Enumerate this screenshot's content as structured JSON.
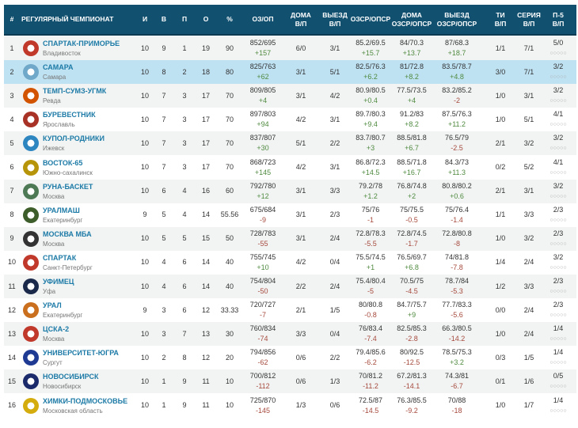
{
  "header": [
    "#",
    "РЕГУЛЯРНЫЙ ЧЕМПИОНАТ",
    "И",
    "В",
    "П",
    "О",
    "%",
    "ОЗ/ОП",
    "ДОМА\nВ/П",
    "ВЫЕЗД\nВ/П",
    "ОЗСР/ОПСР",
    "ДОМА\nОЗСР/ОПСР",
    "ВЫЕЗД\nОЗСР/ОПСР",
    "ТИ\nВ/П",
    "СЕРИЯ\nВ/П",
    "П-5\nВ/П"
  ],
  "colors": {
    "header_bg": "#11506f",
    "team_name": "#1c7aa6",
    "highlight": "#bfe2f3",
    "positive": "#4f8a3f",
    "negative": "#a64a3d"
  },
  "last_five_marker": "○○○○○",
  "rows": [
    [
      "1",
      "СПАРТАК-ПРИМОРЬЕ",
      "Владивосток",
      "10",
      "9",
      "1",
      "19",
      "90",
      "852/695",
      "+157",
      "6/0",
      "3/1",
      "85.2/69.5",
      "+15.7",
      "84/70.3",
      "+13.7",
      "87/68.3",
      "+18.7",
      "1/1",
      "7/1",
      "5/0",
      "#c0392b"
    ],
    [
      "2",
      "САМАРА",
      "Самара",
      "10",
      "8",
      "2",
      "18",
      "80",
      "825/763",
      "+62",
      "3/1",
      "5/1",
      "82.5/76.3",
      "+6.2",
      "81/72.8",
      "+8.2",
      "83.5/78.7",
      "+4.8",
      "3/0",
      "7/1",
      "3/2",
      "#6fa8c8"
    ],
    [
      "3",
      "ТЕМП-СУМЗ-УГМК",
      "Ревда",
      "10",
      "7",
      "3",
      "17",
      "70",
      "809/805",
      "+4",
      "3/1",
      "4/2",
      "80.9/80.5",
      "+0.4",
      "77.5/73.5",
      "+4",
      "83.2/85.2",
      "-2",
      "1/0",
      "3/1",
      "3/2",
      "#d35400"
    ],
    [
      "4",
      "БУРЕВЕСТНИК",
      "Ярославль",
      "10",
      "7",
      "3",
      "17",
      "70",
      "897/803",
      "+94",
      "4/2",
      "3/1",
      "89.7/80.3",
      "+9.4",
      "91.2/83",
      "+8.2",
      "87.5/76.3",
      "+11.2",
      "1/0",
      "5/1",
      "4/1",
      "#a93226"
    ],
    [
      "5",
      "КУПОЛ-РОДНИКИ",
      "Ижевск",
      "10",
      "7",
      "3",
      "17",
      "70",
      "837/807",
      "+30",
      "5/1",
      "2/2",
      "83.7/80.7",
      "+3",
      "88.5/81.8",
      "+6.7",
      "76.5/79",
      "-2.5",
      "2/1",
      "3/2",
      "3/2",
      "#2e86c1"
    ],
    [
      "6",
      "ВОСТОК-65",
      "Южно-сахалинск",
      "10",
      "7",
      "3",
      "17",
      "70",
      "868/723",
      "+145",
      "4/2",
      "3/1",
      "86.8/72.3",
      "+14.5",
      "88.5/71.8",
      "+16.7",
      "84.3/73",
      "+11.3",
      "0/2",
      "5/2",
      "4/1",
      "#b7950b"
    ],
    [
      "7",
      "РУНА-БАСКЕТ",
      "Москва",
      "10",
      "6",
      "4",
      "16",
      "60",
      "792/780",
      "+12",
      "3/1",
      "3/3",
      "79.2/78",
      "+1.2",
      "76.8/74.8",
      "+2",
      "80.8/80.2",
      "+0.6",
      "2/1",
      "3/1",
      "3/2",
      "#4d7a55"
    ],
    [
      "8",
      "УРАЛМАШ",
      "Екатеринбург",
      "9",
      "5",
      "4",
      "14",
      "55.56",
      "675/684",
      "-9",
      "3/1",
      "2/3",
      "75/76",
      "-1",
      "75/75.5",
      "-0.5",
      "75/76.4",
      "-1.4",
      "1/1",
      "3/3",
      "2/3",
      "#3d5e2a"
    ],
    [
      "9",
      "МОСКВА МБА",
      "Москва",
      "10",
      "5",
      "5",
      "15",
      "50",
      "728/783",
      "-55",
      "3/1",
      "2/4",
      "72.8/78.3",
      "-5.5",
      "72.8/74.5",
      "-1.7",
      "72.8/80.8",
      "-8",
      "1/0",
      "3/2",
      "2/3",
      "#333333"
    ],
    [
      "10",
      "СПАРТАК",
      "Санкт-Петербург",
      "10",
      "4",
      "6",
      "14",
      "40",
      "755/745",
      "+10",
      "4/2",
      "0/4",
      "75.5/74.5",
      "+1",
      "76.5/69.7",
      "+6.8",
      "74/81.8",
      "-7.8",
      "1/4",
      "2/4",
      "3/2",
      "#c0392b"
    ],
    [
      "11",
      "УФИМЕЦ",
      "Уфа",
      "10",
      "4",
      "6",
      "14",
      "40",
      "754/804",
      "-50",
      "2/2",
      "2/4",
      "75.4/80.4",
      "-5",
      "70.5/75",
      "-4.5",
      "78.7/84",
      "-5.3",
      "1/2",
      "3/3",
      "2/3",
      "#1b2a4a"
    ],
    [
      "12",
      "УРАЛ",
      "Екатеринбург",
      "9",
      "3",
      "6",
      "12",
      "33.33",
      "720/727",
      "-7",
      "2/1",
      "1/5",
      "80/80.8",
      "-0.8",
      "84.7/75.7",
      "+9",
      "77.7/83.3",
      "-5.6",
      "0/0",
      "2/4",
      "2/3",
      "#ca6f1e"
    ],
    [
      "13",
      "ЦСКА-2",
      "Москва",
      "10",
      "3",
      "7",
      "13",
      "30",
      "760/834",
      "-74",
      "3/3",
      "0/4",
      "76/83.4",
      "-7.4",
      "82.5/85.3",
      "-2.8",
      "66.3/80.5",
      "-14.2",
      "1/0",
      "2/4",
      "1/4",
      "#c0392b"
    ],
    [
      "14",
      "УНИВЕРСИТЕТ-ЮГРА",
      "Сургут",
      "10",
      "2",
      "8",
      "12",
      "20",
      "794/856",
      "-62",
      "0/6",
      "2/2",
      "79.4/85.6",
      "-6.2",
      "80/92.5",
      "-12.5",
      "78.5/75.3",
      "+3.2",
      "0/3",
      "1/5",
      "1/4",
      "#1f3a93"
    ],
    [
      "15",
      "НОВОСИБИРСК",
      "Новосибирск",
      "10",
      "1",
      "9",
      "11",
      "10",
      "700/812",
      "-112",
      "0/6",
      "1/3",
      "70/81.2",
      "-11.2",
      "67.2/81.3",
      "-14.1",
      "74.3/81",
      "-6.7",
      "0/1",
      "1/6",
      "0/5",
      "#1b2a6a"
    ],
    [
      "16",
      "ХИМКИ-ПОДМОСКОВЬЕ",
      "Московская область",
      "10",
      "1",
      "9",
      "11",
      "10",
      "725/870",
      "-145",
      "1/3",
      "0/6",
      "72.5/87",
      "-14.5",
      "76.3/85.5",
      "-9.2",
      "70/88",
      "-18",
      "1/0",
      "1/7",
      "1/4",
      "#d4ac0d"
    ]
  ]
}
